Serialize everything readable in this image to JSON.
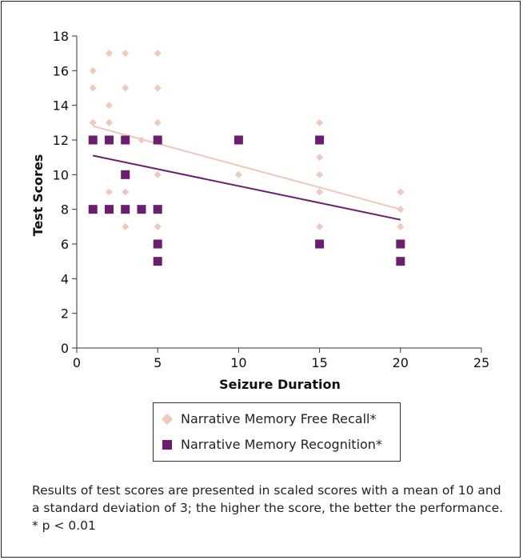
{
  "chart_data": {
    "type": "scatter",
    "xlabel": "Seizure Duration",
    "ylabel": "Test Scores",
    "xlim": [
      0,
      25
    ],
    "ylim": [
      0,
      18
    ],
    "xticks": [
      0,
      5,
      10,
      15,
      20,
      25
    ],
    "yticks": [
      0,
      2,
      4,
      6,
      8,
      10,
      12,
      14,
      16,
      18
    ],
    "grid": false,
    "legend_position": "below",
    "series": [
      {
        "name": "Narrative Memory Free Recall*",
        "marker": "diamond",
        "color": "#f0c8bd",
        "points": [
          [
            1,
            16
          ],
          [
            1,
            15
          ],
          [
            1,
            13
          ],
          [
            2,
            17
          ],
          [
            2,
            14
          ],
          [
            2,
            13
          ],
          [
            2,
            9
          ],
          [
            3,
            17
          ],
          [
            3,
            15
          ],
          [
            3,
            9
          ],
          [
            3,
            7
          ],
          [
            4,
            12
          ],
          [
            5,
            17
          ],
          [
            5,
            15
          ],
          [
            5,
            13
          ],
          [
            5,
            10
          ],
          [
            5,
            7
          ],
          [
            10,
            10
          ],
          [
            15,
            13
          ],
          [
            15,
            11
          ],
          [
            15,
            10
          ],
          [
            15,
            9
          ],
          [
            15,
            7
          ],
          [
            20,
            9
          ],
          [
            20,
            8
          ],
          [
            20,
            7
          ]
        ],
        "trendline": [
          [
            1,
            12.8
          ],
          [
            20,
            8.0
          ]
        ]
      },
      {
        "name": "Narrative Memory Recognition*",
        "marker": "square",
        "color": "#6b1e6e",
        "points": [
          [
            1,
            12
          ],
          [
            1,
            8
          ],
          [
            2,
            12
          ],
          [
            2,
            8
          ],
          [
            3,
            12
          ],
          [
            3,
            10
          ],
          [
            3,
            8
          ],
          [
            4,
            8
          ],
          [
            5,
            12
          ],
          [
            5,
            8
          ],
          [
            5,
            6
          ],
          [
            5,
            5
          ],
          [
            10,
            12
          ],
          [
            15,
            12
          ],
          [
            15,
            6
          ],
          [
            20,
            6
          ],
          [
            20,
            5
          ]
        ],
        "trendline": [
          [
            1,
            11.1
          ],
          [
            20,
            7.4
          ]
        ]
      }
    ]
  },
  "caption": "Results of test scores are presented in scaled scores with a mean of 10 and a standard deviation of 3; the higher the score, the better the performance. * p < 0.01"
}
